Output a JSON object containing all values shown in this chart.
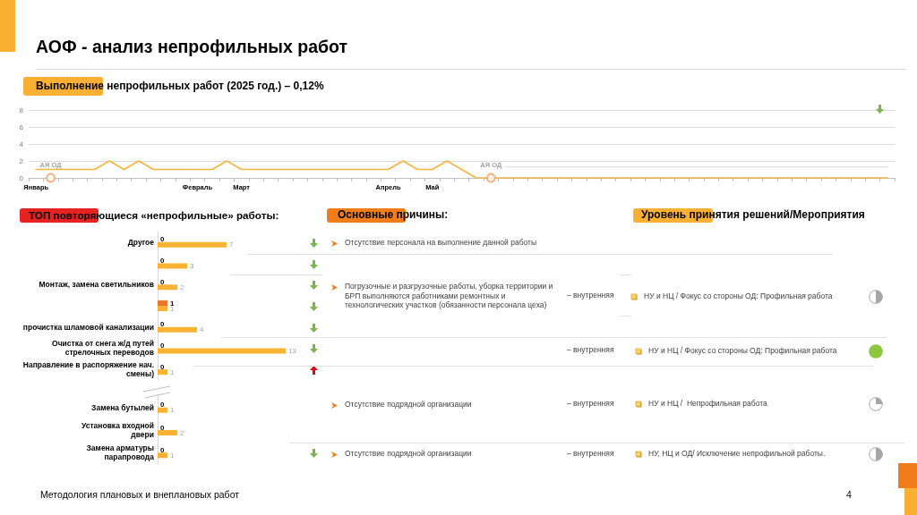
{
  "chart_data": [
    {
      "type": "line",
      "title": "АОФ - анализ непрофильных работ",
      "subtitle": "Выполнение непрофильных работ (2025 год.) – 0,12%",
      "categories": [
        "Январь",
        null,
        null,
        null,
        null,
        null,
        null,
        null,
        null,
        null,
        null,
        "Февраль",
        null,
        null,
        "Март",
        null,
        null,
        null,
        null,
        null,
        null,
        null,
        null,
        null,
        "Апрель",
        null,
        null,
        "Май",
        null,
        null,
        null,
        null,
        null,
        null,
        null,
        null,
        null,
        null,
        null,
        null,
        null,
        null,
        null,
        null,
        null,
        null,
        null,
        null,
        null,
        null,
        null,
        null,
        null,
        null,
        null,
        null,
        null,
        null,
        null
      ],
      "series": [
        {
          "color": "#f6b33d",
          "values": [
            1,
            1,
            1,
            1,
            1,
            2,
            1,
            2,
            1,
            1,
            1,
            1,
            1,
            2,
            1,
            1,
            1,
            1,
            1,
            1,
            1,
            1,
            1,
            1,
            1,
            2,
            1,
            1,
            2,
            1,
            0,
            0,
            0,
            0,
            0,
            0,
            0,
            0,
            0,
            0,
            0,
            0,
            0,
            0,
            0,
            0,
            0,
            0,
            0,
            0,
            0,
            0,
            0,
            0,
            0,
            0,
            0,
            0,
            0
          ]
        },
        {
          "type": "scatter",
          "marker": "circle",
          "color": "#f2a566",
          "values": [
            null,
            0,
            null,
            null,
            null,
            null,
            null,
            null,
            null,
            null,
            null,
            null,
            null,
            null,
            null,
            null,
            null,
            null,
            null,
            null,
            null,
            null,
            null,
            null,
            null,
            null,
            null,
            null,
            null,
            null,
            null,
            0,
            null,
            null,
            null,
            null,
            null,
            null,
            null,
            null,
            null,
            null,
            null,
            null,
            null,
            null,
            null,
            null,
            null,
            null,
            null,
            null,
            null,
            null,
            null,
            null,
            null,
            null,
            null
          ],
          "value_labels": [
            null,
            "АЯ ОД",
            null,
            null,
            null,
            null,
            null,
            null,
            null,
            null,
            null,
            null,
            null,
            null,
            null,
            null,
            null,
            null,
            null,
            null,
            null,
            null,
            null,
            null,
            null,
            null,
            null,
            null,
            null,
            null,
            null,
            "АЯ ОД",
            null,
            null,
            null,
            null,
            null,
            null,
            null,
            null,
            null,
            null,
            null,
            null,
            null,
            null,
            null,
            null,
            null,
            null,
            null,
            null,
            null,
            null,
            null,
            null,
            null,
            null,
            null
          ]
        },
        {
          "color": "#d9d9d9",
          "values": [
            null,
            null,
            null,
            null,
            null,
            null,
            null,
            null,
            null,
            null,
            null,
            null,
            null,
            null,
            null,
            null,
            null,
            null,
            null,
            null,
            null,
            null,
            null,
            null,
            null,
            null,
            null,
            null,
            null,
            null,
            null,
            null,
            1.3,
            1.3,
            1.3,
            1.3,
            1.3,
            1.3,
            1.3,
            1.3,
            1.3,
            1.3,
            1.3,
            1.3,
            1.3,
            1.3,
            1.3,
            1.3,
            1.3,
            1.3,
            1.3,
            1.3,
            1.3,
            1.3,
            1.3,
            1.3,
            1.3,
            1.3,
            1.3
          ]
        }
      ],
      "ylim": [
        0,
        8
      ],
      "yticks": [
        0,
        2,
        4,
        6,
        8
      ],
      "grid": "y",
      "marker": "none",
      "annotations": [
        "Методология плановых и внеплановых работ",
        "4"
      ]
    },
    {
      "type": "bar",
      "orientation": "horizontal",
      "title": "ТОП повторяющиеся «непрофильные» работы:",
      "categories": [
        "Другое",
        null,
        "Монтаж, замена светильников",
        null,
        "прочистка шламовой канализации",
        "Очистка от снега ж/д путей стрелочных переводов",
        "Направление в распоряжение нач. смены)"
      ],
      "series": [
        {
          "color": "#e8762d",
          "values": [
            0,
            0,
            0,
            1,
            0,
            0,
            0
          ]
        },
        {
          "color": "#f9b233",
          "values": [
            7,
            3,
            2,
            1,
            4,
            13,
            1
          ]
        }
      ],
      "data_labels": true,
      "tick_labels": "y"
    },
    {
      "type": "bar",
      "orientation": "horizontal",
      "categories": [
        "Замена бутылей",
        "Установка входной двери",
        "Замена арматуры парапровода"
      ],
      "series": [
        {
          "color": "#e8762d",
          "values": [
            0,
            0,
            0
          ]
        },
        {
          "color": "#f9b233",
          "values": [
            1,
            2,
            1
          ]
        }
      ],
      "data_labels": true,
      "tick_labels": "y"
    },
    {
      "type": "other",
      "title": "Основные причины:",
      "annotations": [
        "Отсутствие персонала на выполнение данной работы",
        "Погрузочные и разгрузочные работы, уборка территории и БРП выполняются работниками ремонтных и технологических участков (обязанности персонала цеха)",
        "– внутренняя",
        "– внутренняя",
        "Отсутствие подрядной организации",
        "– внутренняя",
        "Отсутствие подрядной организации",
        "– внутренняя"
      ]
    },
    {
      "type": "other",
      "title": "Уровень принятия решений/Мероприятия",
      "annotations": [
        "НУ и НЦ / Фокус со стороны ОД: Профильная работа",
        "НУ и НЦ / Фокус со стороны ОД: Профильная работа",
        "НУ и НЦ /  Непрофильная работа",
        "НУ, НЦ и ОД/ Исключение непрофильной работы."
      ]
    }
  ]
}
